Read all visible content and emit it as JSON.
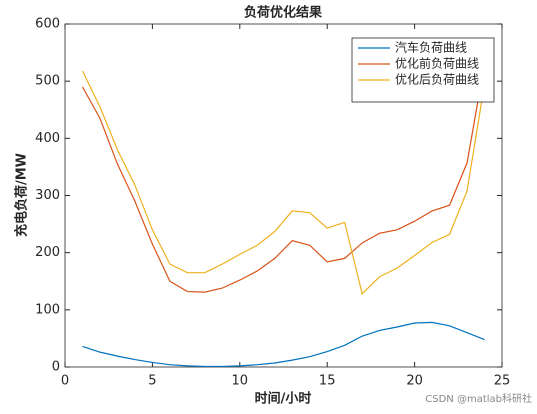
{
  "chart_data": {
    "type": "line",
    "title": "负荷优化结果",
    "x_label": "时间/小时",
    "y_label": "充电负荷/MW",
    "x": [
      1,
      2,
      3,
      4,
      5,
      6,
      7,
      8,
      9,
      10,
      11,
      12,
      13,
      14,
      15,
      16,
      17,
      18,
      19,
      20,
      21,
      22,
      23,
      24
    ],
    "series": [
      {
        "name": "汽车负荷曲线",
        "color": "#0072BD",
        "values": [
          36,
          26,
          19,
          13,
          8,
          4,
          2,
          1,
          1,
          2,
          4,
          7,
          12,
          18,
          27,
          38,
          54,
          64,
          70,
          77,
          78,
          72,
          60,
          48
        ]
      },
      {
        "name": "优化前负荷曲线",
        "color": "#D95319",
        "values": [
          490,
          435,
          355,
          290,
          215,
          150,
          132,
          131,
          138,
          152,
          168,
          190,
          221,
          213,
          184,
          190,
          217,
          234,
          240,
          255,
          273,
          283,
          357,
          530
        ]
      },
      {
        "name": "优化后负荷曲线",
        "color": "#EDB120",
        "values": [
          518,
          455,
          380,
          318,
          240,
          180,
          165,
          165,
          180,
          197,
          213,
          237,
          273,
          270,
          243,
          253,
          128,
          158,
          173,
          195,
          218,
          232,
          308,
          495
        ]
      }
    ],
    "xlim": [
      0,
      25
    ],
    "xticks": [
      0,
      5,
      10,
      15,
      20,
      25
    ],
    "ylim": [
      0,
      600
    ],
    "yticks": [
      0,
      100,
      200,
      300,
      400,
      500,
      600
    ],
    "legend": "top-right",
    "watermark": "CSDN @matlab科研社"
  }
}
